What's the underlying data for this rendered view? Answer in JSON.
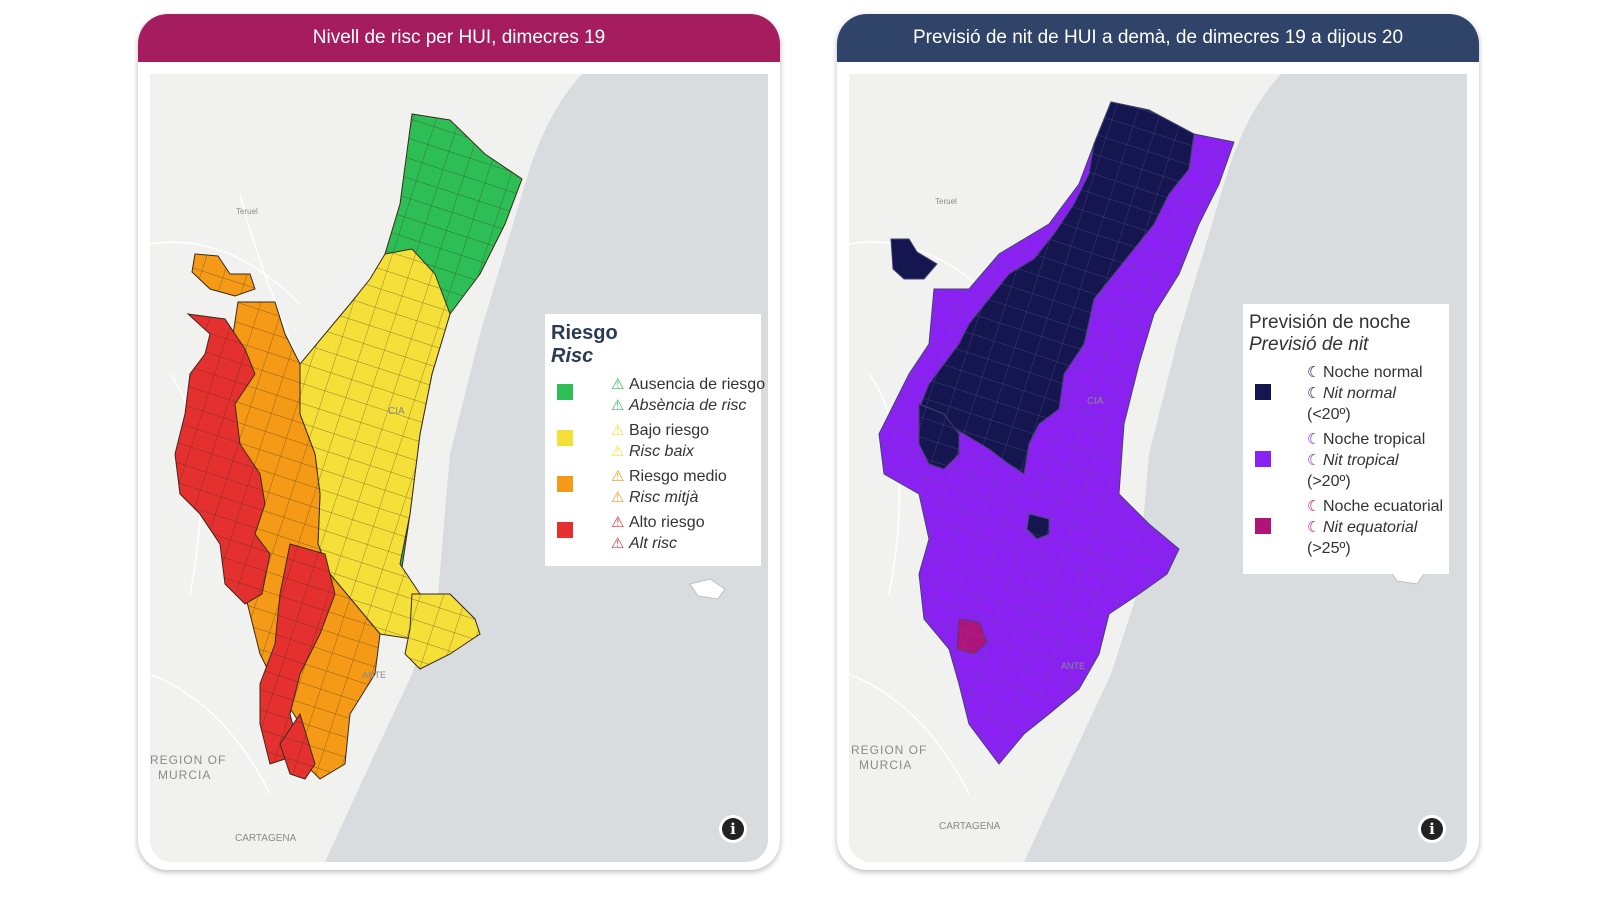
{
  "left_panel": {
    "title": "Nivell de risc per HUI, dimecres 19",
    "header_color": "#a51d5e",
    "legend": {
      "title": "Riesgo",
      "subtitle": "Risc",
      "items": [
        {
          "es": "Ausencia de riesgo",
          "va": "Absència de risc",
          "color": "#2dbf55",
          "icon": "warning-triangle-icon"
        },
        {
          "es": "Bajo riesgo",
          "va": "Risc baix",
          "color": "#f5e03a",
          "icon": "warning-triangle-icon"
        },
        {
          "es": "Riesgo medio",
          "va": "Risc mitjà",
          "color": "#f59a16",
          "icon": "warning-triangle-icon"
        },
        {
          "es": "Alto riesgo",
          "va": "Alt risc",
          "color": "#e53030",
          "icon": "warning-triangle-icon"
        }
      ]
    },
    "map_labels": {
      "teruel": "Teruel",
      "valencia_partial": "CIA",
      "alicante_partial": "ANTE",
      "murcia_line1": "REGION OF",
      "murcia_line2": "MURCIA",
      "cartagena": "CARTAGENA"
    }
  },
  "right_panel": {
    "title": "Previsió de nit de HUI a demà, de dimecres 19 a dijous 20",
    "header_color": "#2f4468",
    "legend": {
      "title": "Previsión de noche",
      "subtitle": "Previsió de nit",
      "items": [
        {
          "es": "Noche normal",
          "va": "Nit normal",
          "range": "(<20º)",
          "color": "#15154f",
          "icon": "moon-icon"
        },
        {
          "es": "Noche tropical",
          "va": "Nit tropical",
          "range": "(>20º)",
          "color": "#8a21f2",
          "icon": "moon-icon"
        },
        {
          "es": "Noche ecuatorial",
          "va": "Nit equatorial",
          "range": "(>25º)",
          "color": "#b0147a",
          "icon": "moon-icon"
        }
      ]
    },
    "map_labels": {
      "teruel": "Teruel",
      "valencia_partial": "CIA",
      "alicante_partial": "ANTE",
      "murcia_line1": "REGION OF",
      "murcia_line2": "MURCIA",
      "cartagena": "CARTAGENA"
    }
  },
  "info_button": "i"
}
